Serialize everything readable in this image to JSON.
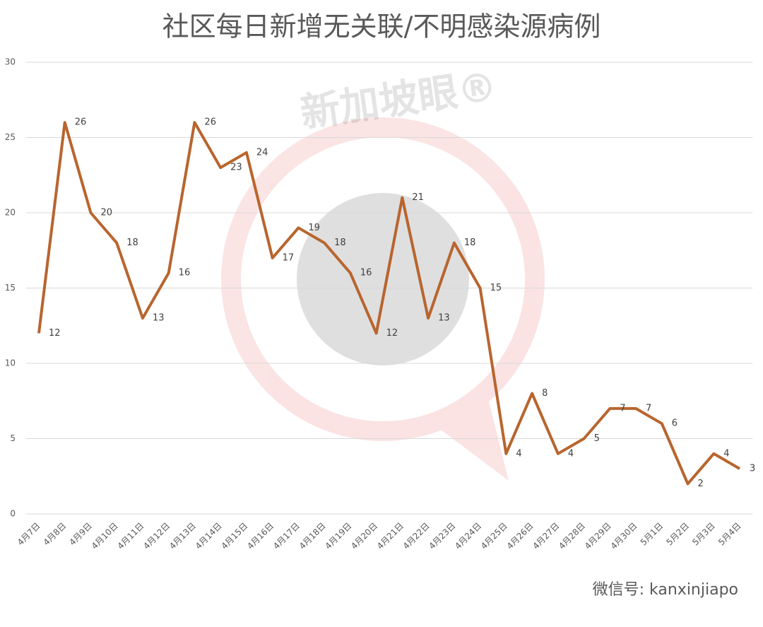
{
  "chart_data": {
    "type": "line",
    "title": "社区每日新增无关联/不明感染源病例",
    "categories": [
      "4月7日",
      "4月8日",
      "4月9日",
      "4月10日",
      "4月11日",
      "4月12日",
      "4月13日",
      "4月14日",
      "4月15日",
      "4月16日",
      "4月17日",
      "4月18日",
      "4月19日",
      "4月20日",
      "4月21日",
      "4月22日",
      "4月23日",
      "4月24日",
      "4月25日",
      "4月26日",
      "4月27日",
      "4月28日",
      "4月29日",
      "4月30日",
      "5月1日",
      "5月2日",
      "5月3日",
      "5月4日"
    ],
    "values": [
      12,
      26,
      20,
      18,
      13,
      16,
      26,
      23,
      24,
      17,
      19,
      18,
      16,
      12,
      21,
      13,
      18,
      15,
      4,
      8,
      4,
      5,
      7,
      7,
      6,
      2,
      4,
      3
    ],
    "color": "#b8652e",
    "ylim": [
      0,
      30
    ],
    "yticks": [
      0,
      5,
      10,
      15,
      20,
      25,
      30
    ],
    "grid": true,
    "watermark": "新加坡眼®",
    "footer": "微信号: kanxinjiapo"
  }
}
